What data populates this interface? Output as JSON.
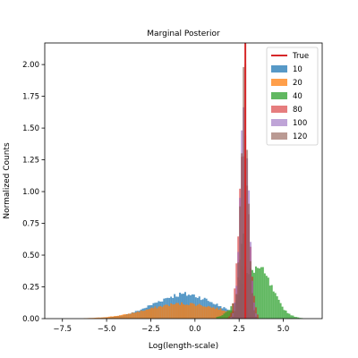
{
  "chart_data": {
    "type": "bar",
    "title": "Marginal Posterior",
    "xlabel": "Log(length-scale)",
    "ylabel": "Normalized Counts",
    "xlim": [
      -8.5,
      7.2
    ],
    "ylim": [
      0,
      2.17
    ],
    "xticks": [
      -7.5,
      -5.0,
      -2.5,
      0.0,
      2.5,
      5.0
    ],
    "xtick_labels": [
      "−7.5",
      "−5.0",
      "−2.5",
      "0.0",
      "2.5",
      "5.0"
    ],
    "yticks": [
      0.0,
      0.25,
      0.5,
      0.75,
      1.0,
      1.25,
      1.5,
      1.75,
      2.0
    ],
    "ytick_labels": [
      "0.00",
      "0.25",
      "0.50",
      "0.75",
      "1.00",
      "1.25",
      "1.50",
      "1.75",
      "2.00"
    ],
    "grid": false,
    "legend_position": "top-right",
    "true_line": {
      "label": "True",
      "x": 2.85,
      "color": "#d62728"
    },
    "bin_width": 0.1,
    "series": [
      {
        "name": "10",
        "color": "#1f77b4",
        "alpha": 0.75,
        "components": [
          {
            "mean": -0.6,
            "sd": 1.75,
            "weight": 0.84
          },
          {
            "mean": 2.65,
            "sd": 0.13,
            "weight": 0.09
          }
        ],
        "x_range": [
          -7.8,
          3.3
        ]
      },
      {
        "name": "20",
        "color": "#ff7f0e",
        "alpha": 0.75,
        "components": [
          {
            "mean": -0.6,
            "sd": 2.1,
            "weight": 0.62
          },
          {
            "mean": 2.6,
            "sd": 0.18,
            "weight": 0.2
          }
        ],
        "x_range": [
          -7.5,
          3.5
        ]
      },
      {
        "name": "40",
        "color": "#2ca02c",
        "alpha": 0.75,
        "components": [
          {
            "mean": 3.5,
            "sd": 0.85,
            "weight": 0.85
          },
          {
            "mean": 2.7,
            "sd": 0.09,
            "weight": 0.1
          }
        ],
        "x_range": [
          1.2,
          6.6
        ]
      },
      {
        "name": "80",
        "color": "#d62728",
        "alpha": 0.6,
        "components": [
          {
            "mean": 2.78,
            "sd": 0.28,
            "weight": 0.99
          }
        ],
        "x_range": [
          1.6,
          3.6
        ]
      },
      {
        "name": "100",
        "color": "#9467bd",
        "alpha": 0.6,
        "components": [
          {
            "mean": 2.8,
            "sd": 0.24,
            "weight": 0.99
          }
        ],
        "x_range": [
          1.7,
          3.5
        ]
      },
      {
        "name": "120",
        "color": "#8c564b",
        "alpha": 0.6,
        "components": [
          {
            "mean": 2.8,
            "sd": 0.21,
            "weight": 0.99
          }
        ],
        "x_range": [
          1.8,
          3.5
        ]
      }
    ]
  }
}
